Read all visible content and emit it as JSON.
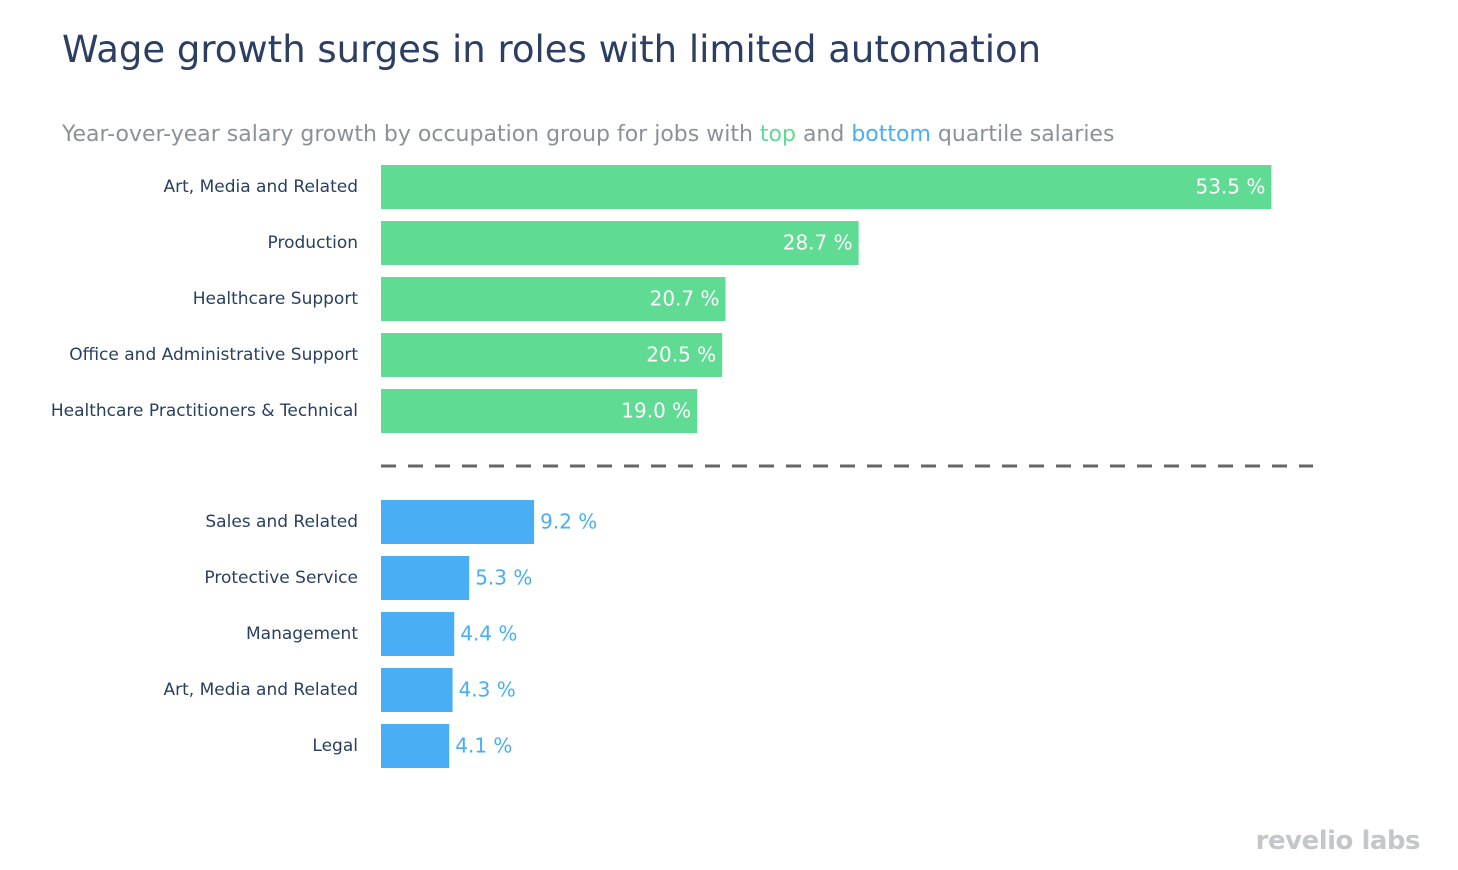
{
  "chart_data": {
    "type": "bar",
    "orientation": "horizontal",
    "title": "Wage growth surges in roles with limited automation",
    "subtitle_parts": [
      "Year-over-year salary growth by occupation group for jobs with",
      "and",
      "quartile salaries"
    ],
    "logo": "revelio labs",
    "xlim": [
      0,
      56
    ],
    "separator": "dashed",
    "series": [
      {
        "name": "top",
        "color": "#5fdb94",
        "label_position": "inside",
        "label_color": "#ffffff",
        "categories": [
          "Art, Media and Related",
          "Production",
          "Healthcare Support",
          "Office and Administrative Support",
          "Healthcare Practitioners & Technical"
        ],
        "values": [
          53.5,
          28.7,
          20.7,
          20.5,
          19.0
        ],
        "value_labels": [
          "53.5 %",
          "28.7 %",
          "20.7 %",
          "20.5 %",
          "19.0 %"
        ]
      },
      {
        "name": "bottom",
        "color": "#4aaef5",
        "label_position": "outside",
        "label_color": "#4aaef5",
        "categories": [
          "Sales and Related",
          "Protective Service",
          "Management",
          "Art, Media and Related",
          "Legal"
        ],
        "values": [
          9.2,
          5.3,
          4.4,
          4.3,
          4.1
        ],
        "value_labels": [
          "9.2 %",
          "5.3 %",
          "4.4 %",
          "4.3 %",
          "4.1 %"
        ]
      }
    ]
  }
}
